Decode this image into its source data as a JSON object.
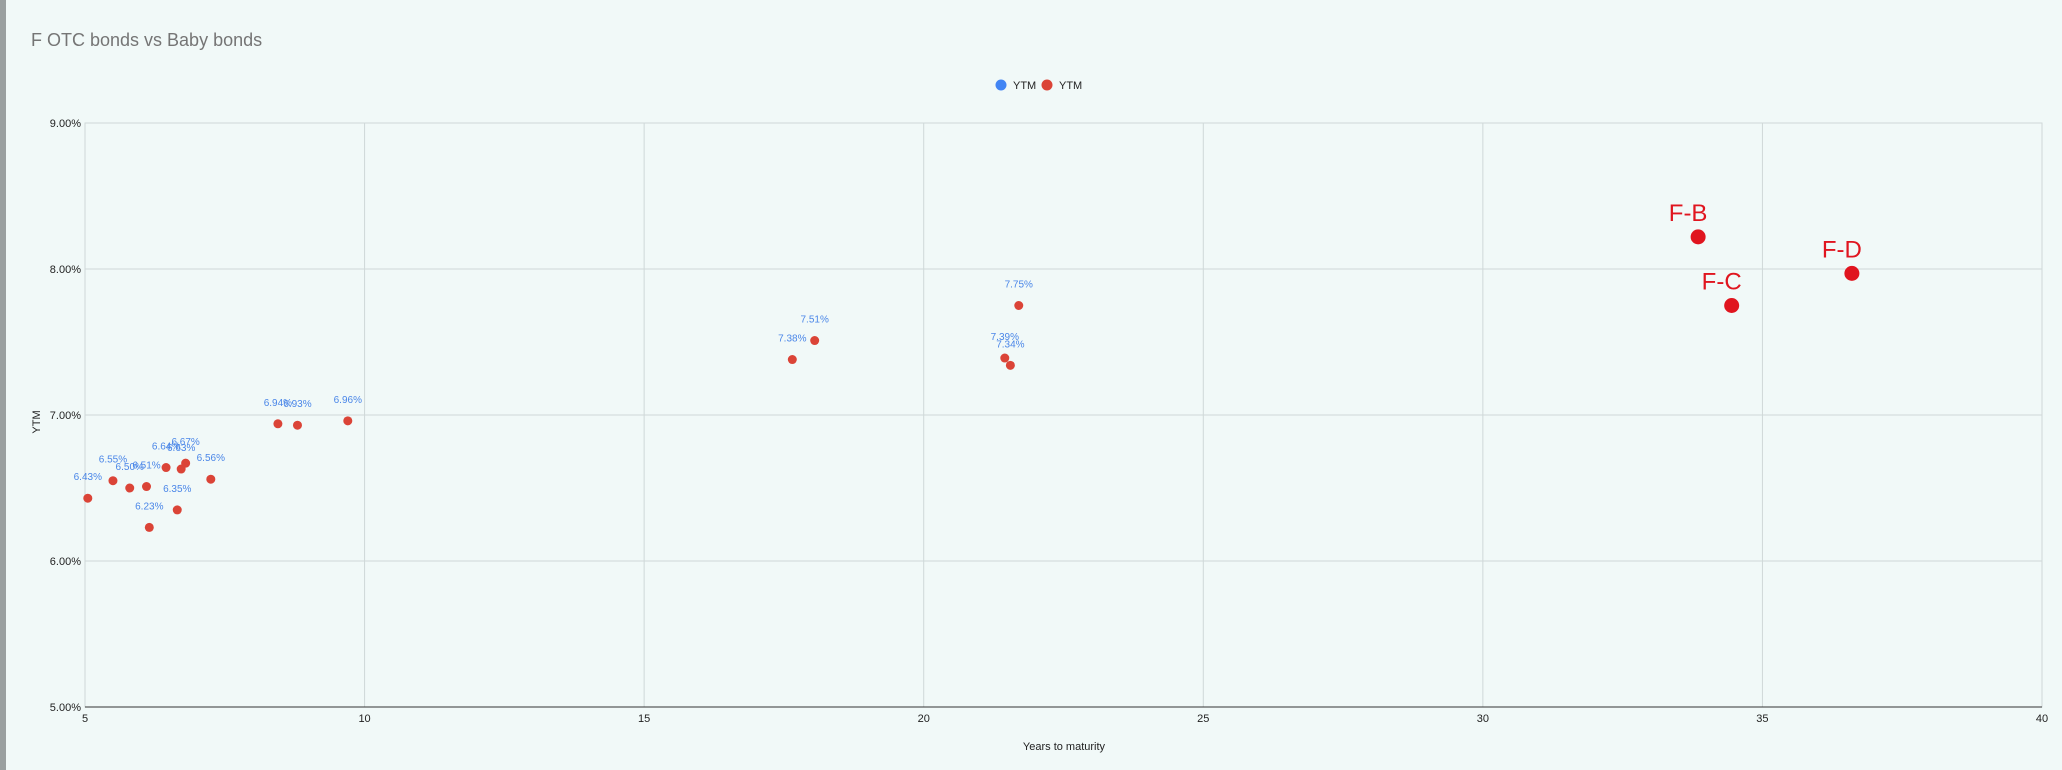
{
  "chart_data": {
    "type": "scatter",
    "title": "F OTC bonds vs Baby bonds",
    "xlabel": "Years to maturity",
    "ylabel": "YTM",
    "xlim": [
      5,
      40
    ],
    "ylim": [
      5.0,
      9.0
    ],
    "x_ticks": [
      5,
      10,
      15,
      20,
      25,
      30,
      35,
      40
    ],
    "x_tick_labels": [
      "5",
      "10",
      "15",
      "20",
      "25",
      "30",
      "35",
      "40"
    ],
    "y_ticks": [
      5,
      6,
      7,
      8,
      9
    ],
    "y_tick_labels": [
      "5.00%",
      "6.00%",
      "7.00%",
      "8.00%",
      "9.00%"
    ],
    "grid": true,
    "legend_position": "top",
    "legend": [
      {
        "label": "YTM",
        "color": "#4285f4"
      },
      {
        "label": "YTM",
        "color": "#db4437"
      }
    ],
    "series": [
      {
        "name": "YTM",
        "color": "#db4437",
        "label_color": "#4a86e8",
        "points": [
          {
            "x": 5.05,
            "y": 6.43,
            "label": "6.43%"
          },
          {
            "x": 5.5,
            "y": 6.55,
            "label": "6.55%"
          },
          {
            "x": 5.8,
            "y": 6.5,
            "label": "6.50%"
          },
          {
            "x": 6.1,
            "y": 6.51,
            "label": "6.51%"
          },
          {
            "x": 6.15,
            "y": 6.23,
            "label": "6.23%"
          },
          {
            "x": 6.45,
            "y": 6.64,
            "label": "6.64%"
          },
          {
            "x": 6.65,
            "y": 6.35,
            "label": "6.35%"
          },
          {
            "x": 6.72,
            "y": 6.63,
            "label": "6.63%"
          },
          {
            "x": 6.8,
            "y": 6.67,
            "label": "6.67%"
          },
          {
            "x": 7.25,
            "y": 6.56,
            "label": "6.56%"
          },
          {
            "x": 8.45,
            "y": 6.94,
            "label": "6.94%"
          },
          {
            "x": 8.8,
            "y": 6.93,
            "label": "6.93%"
          },
          {
            "x": 9.7,
            "y": 6.96,
            "label": "6.96%"
          },
          {
            "x": 17.65,
            "y": 7.38,
            "label": "7.38%"
          },
          {
            "x": 18.05,
            "y": 7.51,
            "label": "7.51%"
          },
          {
            "x": 21.45,
            "y": 7.39,
            "label": "7.39%"
          },
          {
            "x": 21.55,
            "y": 7.34,
            "label": "7.34%"
          },
          {
            "x": 21.7,
            "y": 7.75,
            "label": "7.75%"
          }
        ]
      }
    ],
    "annotations": [
      {
        "text": "F-B",
        "x": 33.85,
        "y": 8.22
      },
      {
        "text": "F-C",
        "x": 34.45,
        "y": 7.75
      },
      {
        "text": "F-D",
        "x": 36.6,
        "y": 7.97
      }
    ],
    "annotation_color": "#e0151f"
  }
}
